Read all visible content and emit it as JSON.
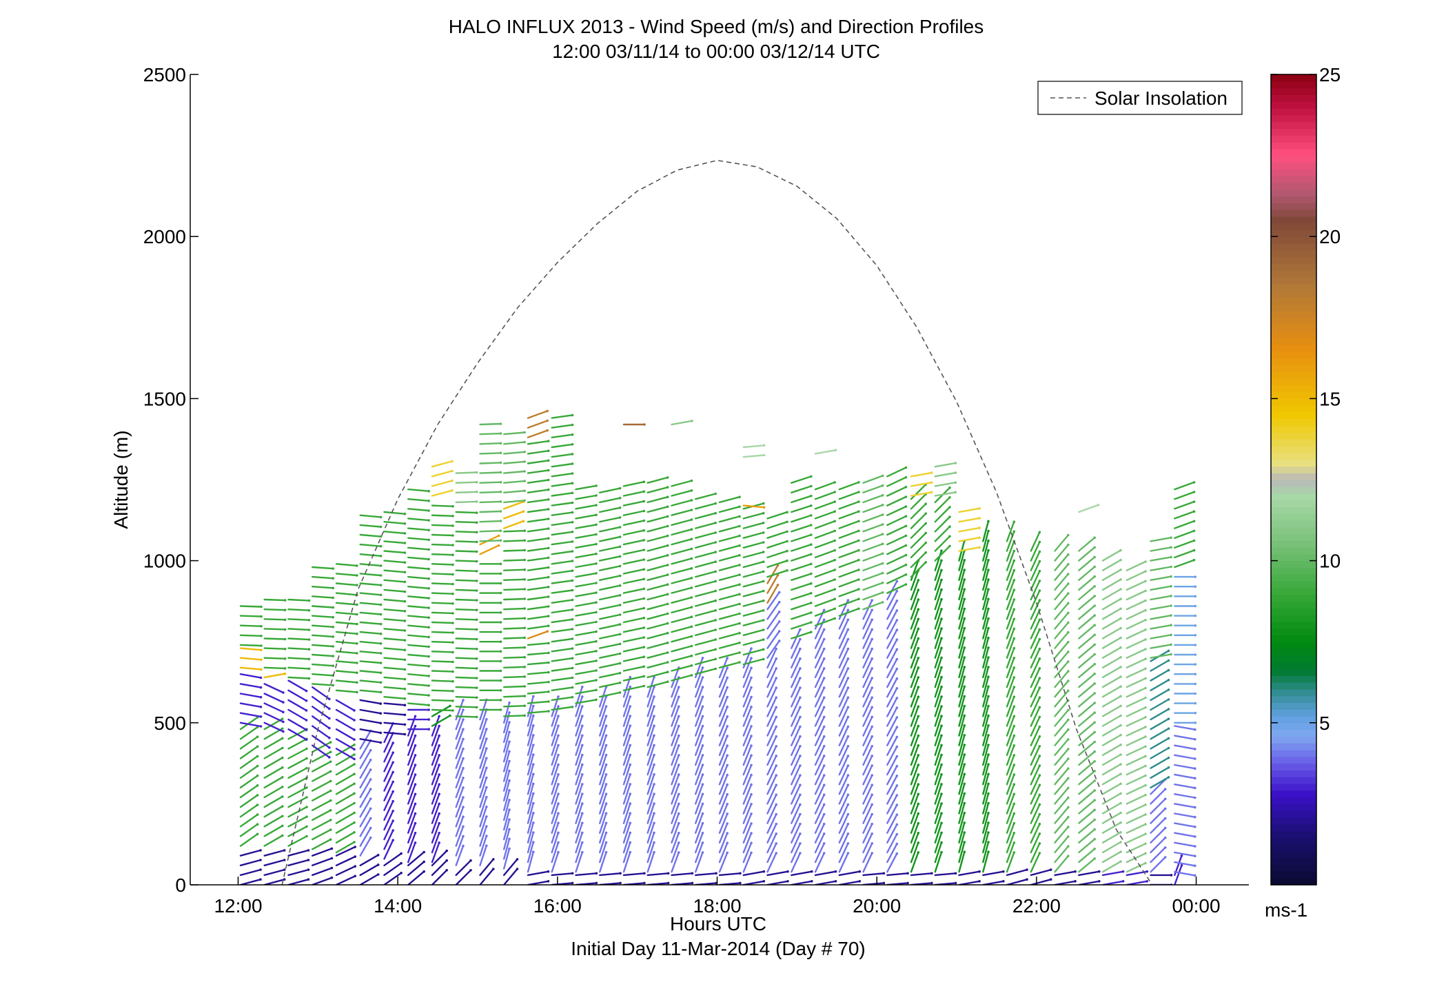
{
  "chart_data": {
    "type": "scatter",
    "subtype": "wind-barb profile",
    "title": "HALO INFLUX 2013 - Wind Speed (m/s) and Direction Profiles",
    "subtitle": "12:00 03/11/14 to 00:00 03/12/14  UTC",
    "xlabel": "Hours UTC",
    "xlabel2": "Initial Day 11-Mar-2014 (Day # 70)",
    "ylabel": "Altitude (m)",
    "xlim": [
      11.4,
      24.66
    ],
    "ylim": [
      0,
      2500
    ],
    "x_ticks": [
      12,
      14,
      16,
      18,
      20,
      22,
      24
    ],
    "x_tick_labels": [
      "12:00",
      "14:00",
      "16:00",
      "18:00",
      "20:00",
      "22:00",
      "00:00"
    ],
    "y_ticks": [
      0,
      500,
      1000,
      1500,
      2000,
      2500
    ],
    "y_tick_labels": [
      "0",
      "500",
      "1000",
      "1500",
      "2000",
      "2500"
    ],
    "legend": {
      "entries": [
        "Solar Insolation"
      ],
      "location": "top-right"
    },
    "solar_insolation": {
      "style": "dashed",
      "color": "#555555",
      "x": [
        12.55,
        13.0,
        13.5,
        14.0,
        14.5,
        15.0,
        15.5,
        16.0,
        16.5,
        17.0,
        17.5,
        18.0,
        18.5,
        19.0,
        19.5,
        20.0,
        20.5,
        21.0,
        21.5,
        22.0,
        22.5,
        23.0,
        23.45
      ],
      "y": [
        0,
        480,
        910,
        1190,
        1420,
        1610,
        1780,
        1920,
        2040,
        2140,
        2205,
        2235,
        2215,
        2155,
        2055,
        1910,
        1720,
        1490,
        1210,
        870,
        480,
        170,
        0
      ]
    },
    "colorbar": {
      "label": "ms-1",
      "range": [
        0,
        25
      ],
      "ticks": [
        5,
        10,
        15,
        20,
        25
      ],
      "tick_labels": [
        "5",
        "10",
        "15",
        "20",
        "25"
      ],
      "stops": [
        {
          "v": 0,
          "c": "#0a0a30"
        },
        {
          "v": 1.5,
          "c": "#1a1070"
        },
        {
          "v": 2.8,
          "c": "#3a10c8"
        },
        {
          "v": 3.8,
          "c": "#6a60e8"
        },
        {
          "v": 4.6,
          "c": "#80a8f0"
        },
        {
          "v": 5.2,
          "c": "#60a0e0"
        },
        {
          "v": 6.0,
          "c": "#2e8b8b"
        },
        {
          "v": 6.6,
          "c": "#007a30"
        },
        {
          "v": 7.5,
          "c": "#008a10"
        },
        {
          "v": 9.0,
          "c": "#38a838"
        },
        {
          "v": 10.5,
          "c": "#78c078"
        },
        {
          "v": 12.0,
          "c": "#a8d8a8"
        },
        {
          "v": 12.5,
          "c": "#b8b8b8"
        },
        {
          "v": 13.0,
          "c": "#e8e080"
        },
        {
          "v": 14.5,
          "c": "#f0c800"
        },
        {
          "v": 16.5,
          "c": "#e89010"
        },
        {
          "v": 18.5,
          "c": "#b07838"
        },
        {
          "v": 20.5,
          "c": "#804838"
        },
        {
          "v": 21.3,
          "c": "#b05870"
        },
        {
          "v": 22.5,
          "c": "#ff5080"
        },
        {
          "v": 24.0,
          "c": "#c01040"
        },
        {
          "v": 25.0,
          "c": "#8a0010"
        }
      ]
    },
    "profile_times": [
      12.03,
      12.33,
      12.63,
      12.93,
      13.23,
      13.53,
      13.83,
      14.13,
      14.43,
      14.73,
      15.03,
      15.33,
      15.63,
      15.93,
      16.23,
      16.53,
      16.83,
      17.13,
      17.43,
      17.73,
      18.03,
      18.33,
      18.63,
      18.93,
      19.23,
      19.53,
      19.83,
      20.13,
      20.43,
      20.73,
      21.03,
      21.33,
      21.63,
      21.93,
      22.23,
      22.53,
      22.83,
      23.13,
      23.43,
      23.73
    ],
    "altitude_step_m": 30,
    "profiles": [
      {
        "top": 870,
        "blocks": [
          [
            0,
            120,
            2,
            75
          ],
          [
            120,
            500,
            9,
            55
          ],
          [
            500,
            670,
            3,
            100
          ],
          [
            670,
            740,
            15,
            95
          ],
          [
            740,
            870,
            9,
            92
          ]
        ]
      },
      {
        "top": 900,
        "blocks": [
          [
            0,
            120,
            2,
            75
          ],
          [
            120,
            500,
            9,
            60
          ],
          [
            500,
            640,
            3,
            115
          ],
          [
            640,
            670,
            15,
            80
          ],
          [
            670,
            900,
            9,
            92
          ]
        ]
      },
      {
        "top": 900,
        "blocks": [
          [
            0,
            120,
            2,
            75
          ],
          [
            120,
            480,
            9,
            62
          ],
          [
            480,
            640,
            3,
            120
          ],
          [
            640,
            900,
            9,
            93
          ]
        ]
      },
      {
        "top": 1010,
        "blocks": [
          [
            0,
            110,
            2,
            70
          ],
          [
            110,
            430,
            9,
            62
          ],
          [
            430,
            620,
            3,
            125
          ],
          [
            620,
            1010,
            9,
            94
          ]
        ]
      },
      {
        "top": 1010,
        "blocks": [
          [
            0,
            100,
            2,
            65
          ],
          [
            100,
            420,
            9,
            60
          ],
          [
            420,
            600,
            3,
            120
          ],
          [
            600,
            1010,
            9,
            95
          ]
        ]
      },
      {
        "top": 1170,
        "blocks": [
          [
            0,
            90,
            2,
            60
          ],
          [
            90,
            450,
            4,
            30
          ],
          [
            450,
            600,
            2,
            100
          ],
          [
            600,
            1170,
            9,
            95
          ]
        ]
      },
      {
        "top": 1170,
        "blocks": [
          [
            0,
            80,
            2,
            55
          ],
          [
            80,
            470,
            3,
            25
          ],
          [
            470,
            580,
            2,
            95
          ],
          [
            580,
            1170,
            9,
            95
          ]
        ]
      },
      {
        "top": 1250,
        "blocks": [
          [
            0,
            70,
            2,
            50
          ],
          [
            70,
            480,
            3,
            20
          ],
          [
            480,
            560,
            3,
            90
          ],
          [
            560,
            1250,
            9,
            95
          ]
        ]
      },
      {
        "top": 1320,
        "blocks": [
          [
            0,
            70,
            2,
            45
          ],
          [
            70,
            490,
            3,
            20
          ],
          [
            490,
            540,
            8,
            60
          ],
          [
            540,
            1200,
            9,
            92
          ],
          [
            1200,
            1320,
            14,
            75
          ]
        ]
      },
      {
        "top": 1290,
        "blocks": [
          [
            0,
            60,
            2,
            45
          ],
          [
            60,
            520,
            4,
            20
          ],
          [
            520,
            1180,
            9,
            92
          ],
          [
            1180,
            1290,
            11,
            88
          ]
        ]
      },
      {
        "top": 1450,
        "blocks": [
          [
            0,
            60,
            2,
            40
          ],
          [
            60,
            540,
            4,
            18
          ],
          [
            540,
            1020,
            9,
            90
          ],
          [
            1020,
            1060,
            16,
            65
          ],
          [
            1060,
            1450,
            10,
            88
          ]
        ]
      },
      {
        "top": 1420,
        "blocks": [
          [
            0,
            50,
            2,
            40
          ],
          [
            50,
            520,
            4,
            15
          ],
          [
            520,
            1100,
            9,
            88
          ],
          [
            1100,
            1180,
            15,
            70
          ],
          [
            1180,
            1420,
            10,
            85
          ]
        ]
      },
      {
        "top": 1450,
        "blocks": [
          [
            0,
            40,
            2,
            80
          ],
          [
            40,
            530,
            4,
            15
          ],
          [
            530,
            760,
            9,
            85
          ],
          [
            760,
            790,
            17,
            70
          ],
          [
            790,
            1380,
            9,
            82
          ],
          [
            1380,
            1450,
            18,
            70
          ]
        ]
      },
      {
        "top": 1450,
        "blocks": [
          [
            0,
            40,
            2,
            85
          ],
          [
            40,
            540,
            4,
            18
          ],
          [
            540,
            1450,
            9,
            82
          ]
        ]
      },
      {
        "top": 1250,
        "blocks": [
          [
            0,
            40,
            2,
            85
          ],
          [
            40,
            560,
            4,
            18
          ],
          [
            560,
            1250,
            9,
            80
          ]
        ]
      },
      {
        "top": 1240,
        "blocks": [
          [
            0,
            40,
            2,
            85
          ],
          [
            40,
            580,
            4,
            18
          ],
          [
            580,
            1240,
            9,
            78
          ]
        ]
      },
      {
        "top": 1450,
        "blocks": [
          [
            0,
            40,
            2,
            85
          ],
          [
            40,
            600,
            4,
            18
          ],
          [
            600,
            1240,
            9,
            78
          ],
          [
            1420,
            1450,
            19,
            90
          ]
        ]
      },
      {
        "top": 1250,
        "blocks": [
          [
            0,
            40,
            2,
            85
          ],
          [
            40,
            610,
            4,
            18
          ],
          [
            610,
            1250,
            9,
            75
          ]
        ]
      },
      {
        "top": 1450,
        "blocks": [
          [
            0,
            40,
            2,
            85
          ],
          [
            40,
            630,
            4,
            20
          ],
          [
            630,
            1250,
            9,
            75
          ],
          [
            1420,
            1450,
            11,
            80
          ]
        ]
      },
      {
        "top": 1200,
        "blocks": [
          [
            0,
            40,
            2,
            85
          ],
          [
            40,
            650,
            4,
            20
          ],
          [
            650,
            1200,
            9,
            75
          ]
        ]
      },
      {
        "top": 1200,
        "blocks": [
          [
            0,
            40,
            2,
            85
          ],
          [
            40,
            670,
            4,
            22
          ],
          [
            670,
            1200,
            9,
            75
          ]
        ]
      },
      {
        "top": 1370,
        "blocks": [
          [
            0,
            40,
            2,
            80
          ],
          [
            40,
            680,
            4,
            22
          ],
          [
            680,
            1170,
            9,
            75
          ],
          [
            1170,
            1200,
            16,
            95
          ],
          [
            1320,
            1370,
            12,
            85
          ]
        ]
      },
      {
        "top": 1160,
        "blocks": [
          [
            0,
            40,
            2,
            80
          ],
          [
            40,
            700,
            4,
            25
          ],
          [
            700,
            870,
            4,
            35
          ],
          [
            870,
            950,
            18,
            30
          ],
          [
            950,
            1160,
            9,
            72
          ]
        ]
      },
      {
        "top": 1250,
        "blocks": [
          [
            0,
            40,
            2,
            80
          ],
          [
            40,
            760,
            4,
            25
          ],
          [
            760,
            1250,
            9,
            72
          ]
        ]
      },
      {
        "top": 1360,
        "blocks": [
          [
            0,
            40,
            2,
            80
          ],
          [
            40,
            800,
            4,
            25
          ],
          [
            800,
            1250,
            9,
            70
          ],
          [
            1330,
            1360,
            12,
            80
          ]
        ]
      },
      {
        "top": 1250,
        "blocks": [
          [
            0,
            40,
            2,
            80
          ],
          [
            40,
            830,
            4,
            25
          ],
          [
            830,
            1250,
            9,
            70
          ]
        ]
      },
      {
        "top": 1250,
        "blocks": [
          [
            0,
            40,
            2,
            85
          ],
          [
            40,
            850,
            4,
            25
          ],
          [
            850,
            1250,
            10,
            70
          ]
        ]
      },
      {
        "top": 1270,
        "blocks": [
          [
            0,
            40,
            2,
            85
          ],
          [
            40,
            900,
            4,
            28
          ],
          [
            900,
            1270,
            9,
            65
          ]
        ]
      },
      {
        "top": 1290,
        "blocks": [
          [
            0,
            40,
            2,
            85
          ],
          [
            40,
            950,
            8,
            20
          ],
          [
            950,
            1200,
            9,
            45
          ],
          [
            1200,
            1290,
            14,
            80
          ]
        ]
      },
      {
        "top": 1300,
        "blocks": [
          [
            0,
            40,
            2,
            85
          ],
          [
            40,
            1000,
            8,
            18
          ],
          [
            1000,
            1200,
            9,
            45
          ],
          [
            1200,
            1300,
            11,
            80
          ]
        ]
      },
      {
        "top": 1170,
        "blocks": [
          [
            0,
            40,
            2,
            80
          ],
          [
            40,
            1030,
            8,
            15
          ],
          [
            1030,
            1170,
            14,
            80
          ]
        ]
      },
      {
        "top": 1090,
        "blocks": [
          [
            0,
            40,
            2,
            80
          ],
          [
            40,
            1090,
            8,
            15
          ]
        ]
      },
      {
        "top": 1070,
        "blocks": [
          [
            0,
            40,
            2,
            75
          ],
          [
            40,
            1070,
            9,
            20
          ]
        ]
      },
      {
        "top": 1050,
        "blocks": [
          [
            0,
            40,
            2,
            75
          ],
          [
            40,
            1050,
            9,
            25
          ]
        ]
      },
      {
        "top": 1040,
        "blocks": [
          [
            0,
            40,
            2,
            80
          ],
          [
            40,
            1040,
            10,
            40
          ]
        ]
      },
      {
        "top": 1170,
        "blocks": [
          [
            0,
            40,
            2,
            80
          ],
          [
            40,
            1040,
            10,
            50
          ],
          [
            1150,
            1170,
            12,
            70
          ]
        ]
      },
      {
        "top": 1020,
        "blocks": [
          [
            0,
            40,
            3,
            80
          ],
          [
            40,
            1020,
            11,
            60
          ]
        ]
      },
      {
        "top": 980,
        "blocks": [
          [
            0,
            40,
            3,
            80
          ],
          [
            40,
            980,
            11,
            65
          ]
        ]
      },
      {
        "top": 1080,
        "blocks": [
          [
            0,
            40,
            2,
            90
          ],
          [
            40,
            300,
            4,
            45
          ],
          [
            300,
            700,
            6,
            60
          ],
          [
            700,
            1080,
            10,
            80
          ]
        ]
      },
      {
        "top": 1250,
        "blocks": [
          [
            0,
            40,
            3,
            20
          ],
          [
            40,
            500,
            4,
            100
          ],
          [
            500,
            980,
            5,
            90
          ],
          [
            980,
            1250,
            9,
            70
          ]
        ]
      }
    ]
  }
}
